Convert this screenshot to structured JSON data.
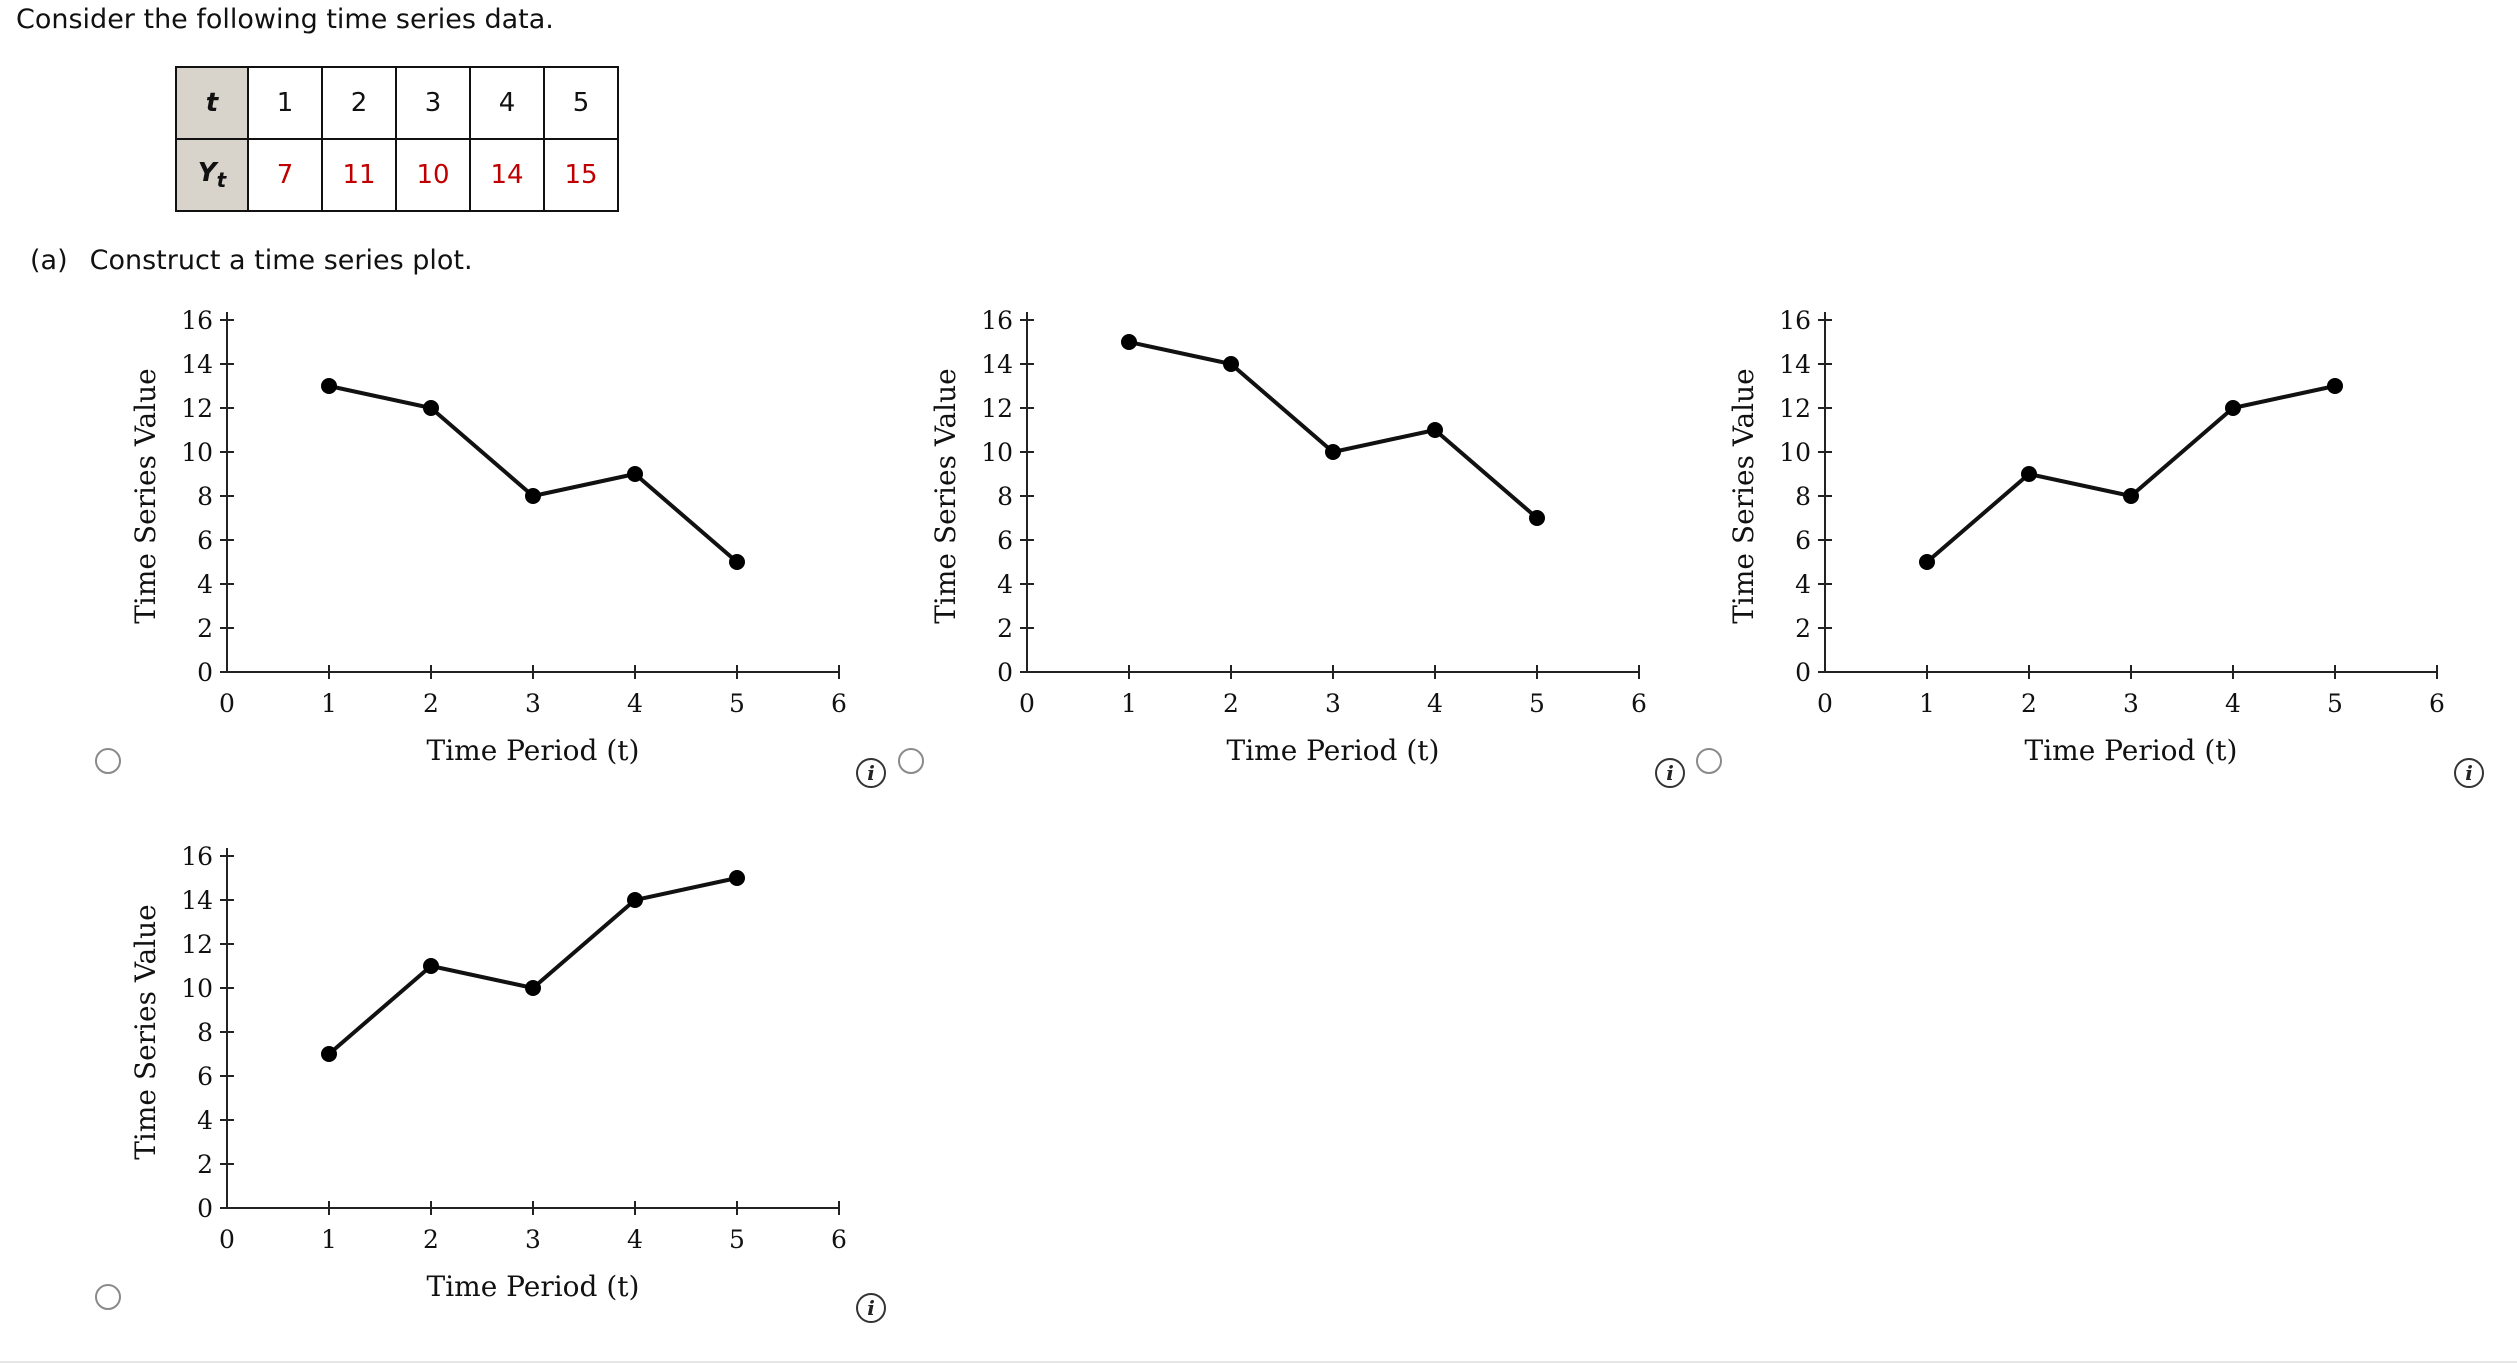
{
  "intro_text": "Consider the following time series data.",
  "table": {
    "t_label": "t",
    "y_label": "Y",
    "y_sub": "t",
    "t_values": [
      "1",
      "2",
      "3",
      "4",
      "5"
    ],
    "y_values": [
      "7",
      "11",
      "10",
      "14",
      "15"
    ]
  },
  "part_a": {
    "tag": "(a)",
    "text": "Construct a time series plot."
  },
  "info_glyph": "i",
  "value_color": "#c00000",
  "chart_data": [
    {
      "type": "line",
      "x": [
        1,
        2,
        3,
        4,
        5
      ],
      "y": [
        13,
        12,
        8,
        9,
        5
      ],
      "xlabel": "Time Period (t)",
      "ylabel": "Time Series Value",
      "xlim": [
        0,
        6
      ],
      "ylim": [
        0,
        16
      ],
      "x_ticks": [
        0,
        1,
        2,
        3,
        4,
        5,
        6
      ],
      "y_ticks": [
        0,
        2,
        4,
        6,
        8,
        10,
        12,
        14,
        16
      ],
      "grid": false
    },
    {
      "type": "line",
      "x": [
        1,
        2,
        3,
        4,
        5
      ],
      "y": [
        15,
        14,
        10,
        11,
        7
      ],
      "xlabel": "Time Period (t)",
      "ylabel": "Time Series Value",
      "xlim": [
        0,
        6
      ],
      "ylim": [
        0,
        16
      ],
      "x_ticks": [
        0,
        1,
        2,
        3,
        4,
        5,
        6
      ],
      "y_ticks": [
        0,
        2,
        4,
        6,
        8,
        10,
        12,
        14,
        16
      ],
      "grid": false
    },
    {
      "type": "line",
      "x": [
        1,
        2,
        3,
        4,
        5
      ],
      "y": [
        5,
        9,
        8,
        12,
        13
      ],
      "xlabel": "Time Period (t)",
      "ylabel": "Time Series Value",
      "xlim": [
        0,
        6
      ],
      "ylim": [
        0,
        16
      ],
      "x_ticks": [
        0,
        1,
        2,
        3,
        4,
        5,
        6
      ],
      "y_ticks": [
        0,
        2,
        4,
        6,
        8,
        10,
        12,
        14,
        16
      ],
      "grid": false
    },
    {
      "type": "line",
      "x": [
        1,
        2,
        3,
        4,
        5
      ],
      "y": [
        7,
        11,
        10,
        14,
        15
      ],
      "xlabel": "Time Period (t)",
      "ylabel": "Time Series Value",
      "xlim": [
        0,
        6
      ],
      "ylim": [
        0,
        16
      ],
      "x_ticks": [
        0,
        1,
        2,
        3,
        4,
        5,
        6
      ],
      "y_ticks": [
        0,
        2,
        4,
        6,
        8,
        10,
        12,
        14,
        16
      ],
      "grid": false
    }
  ]
}
